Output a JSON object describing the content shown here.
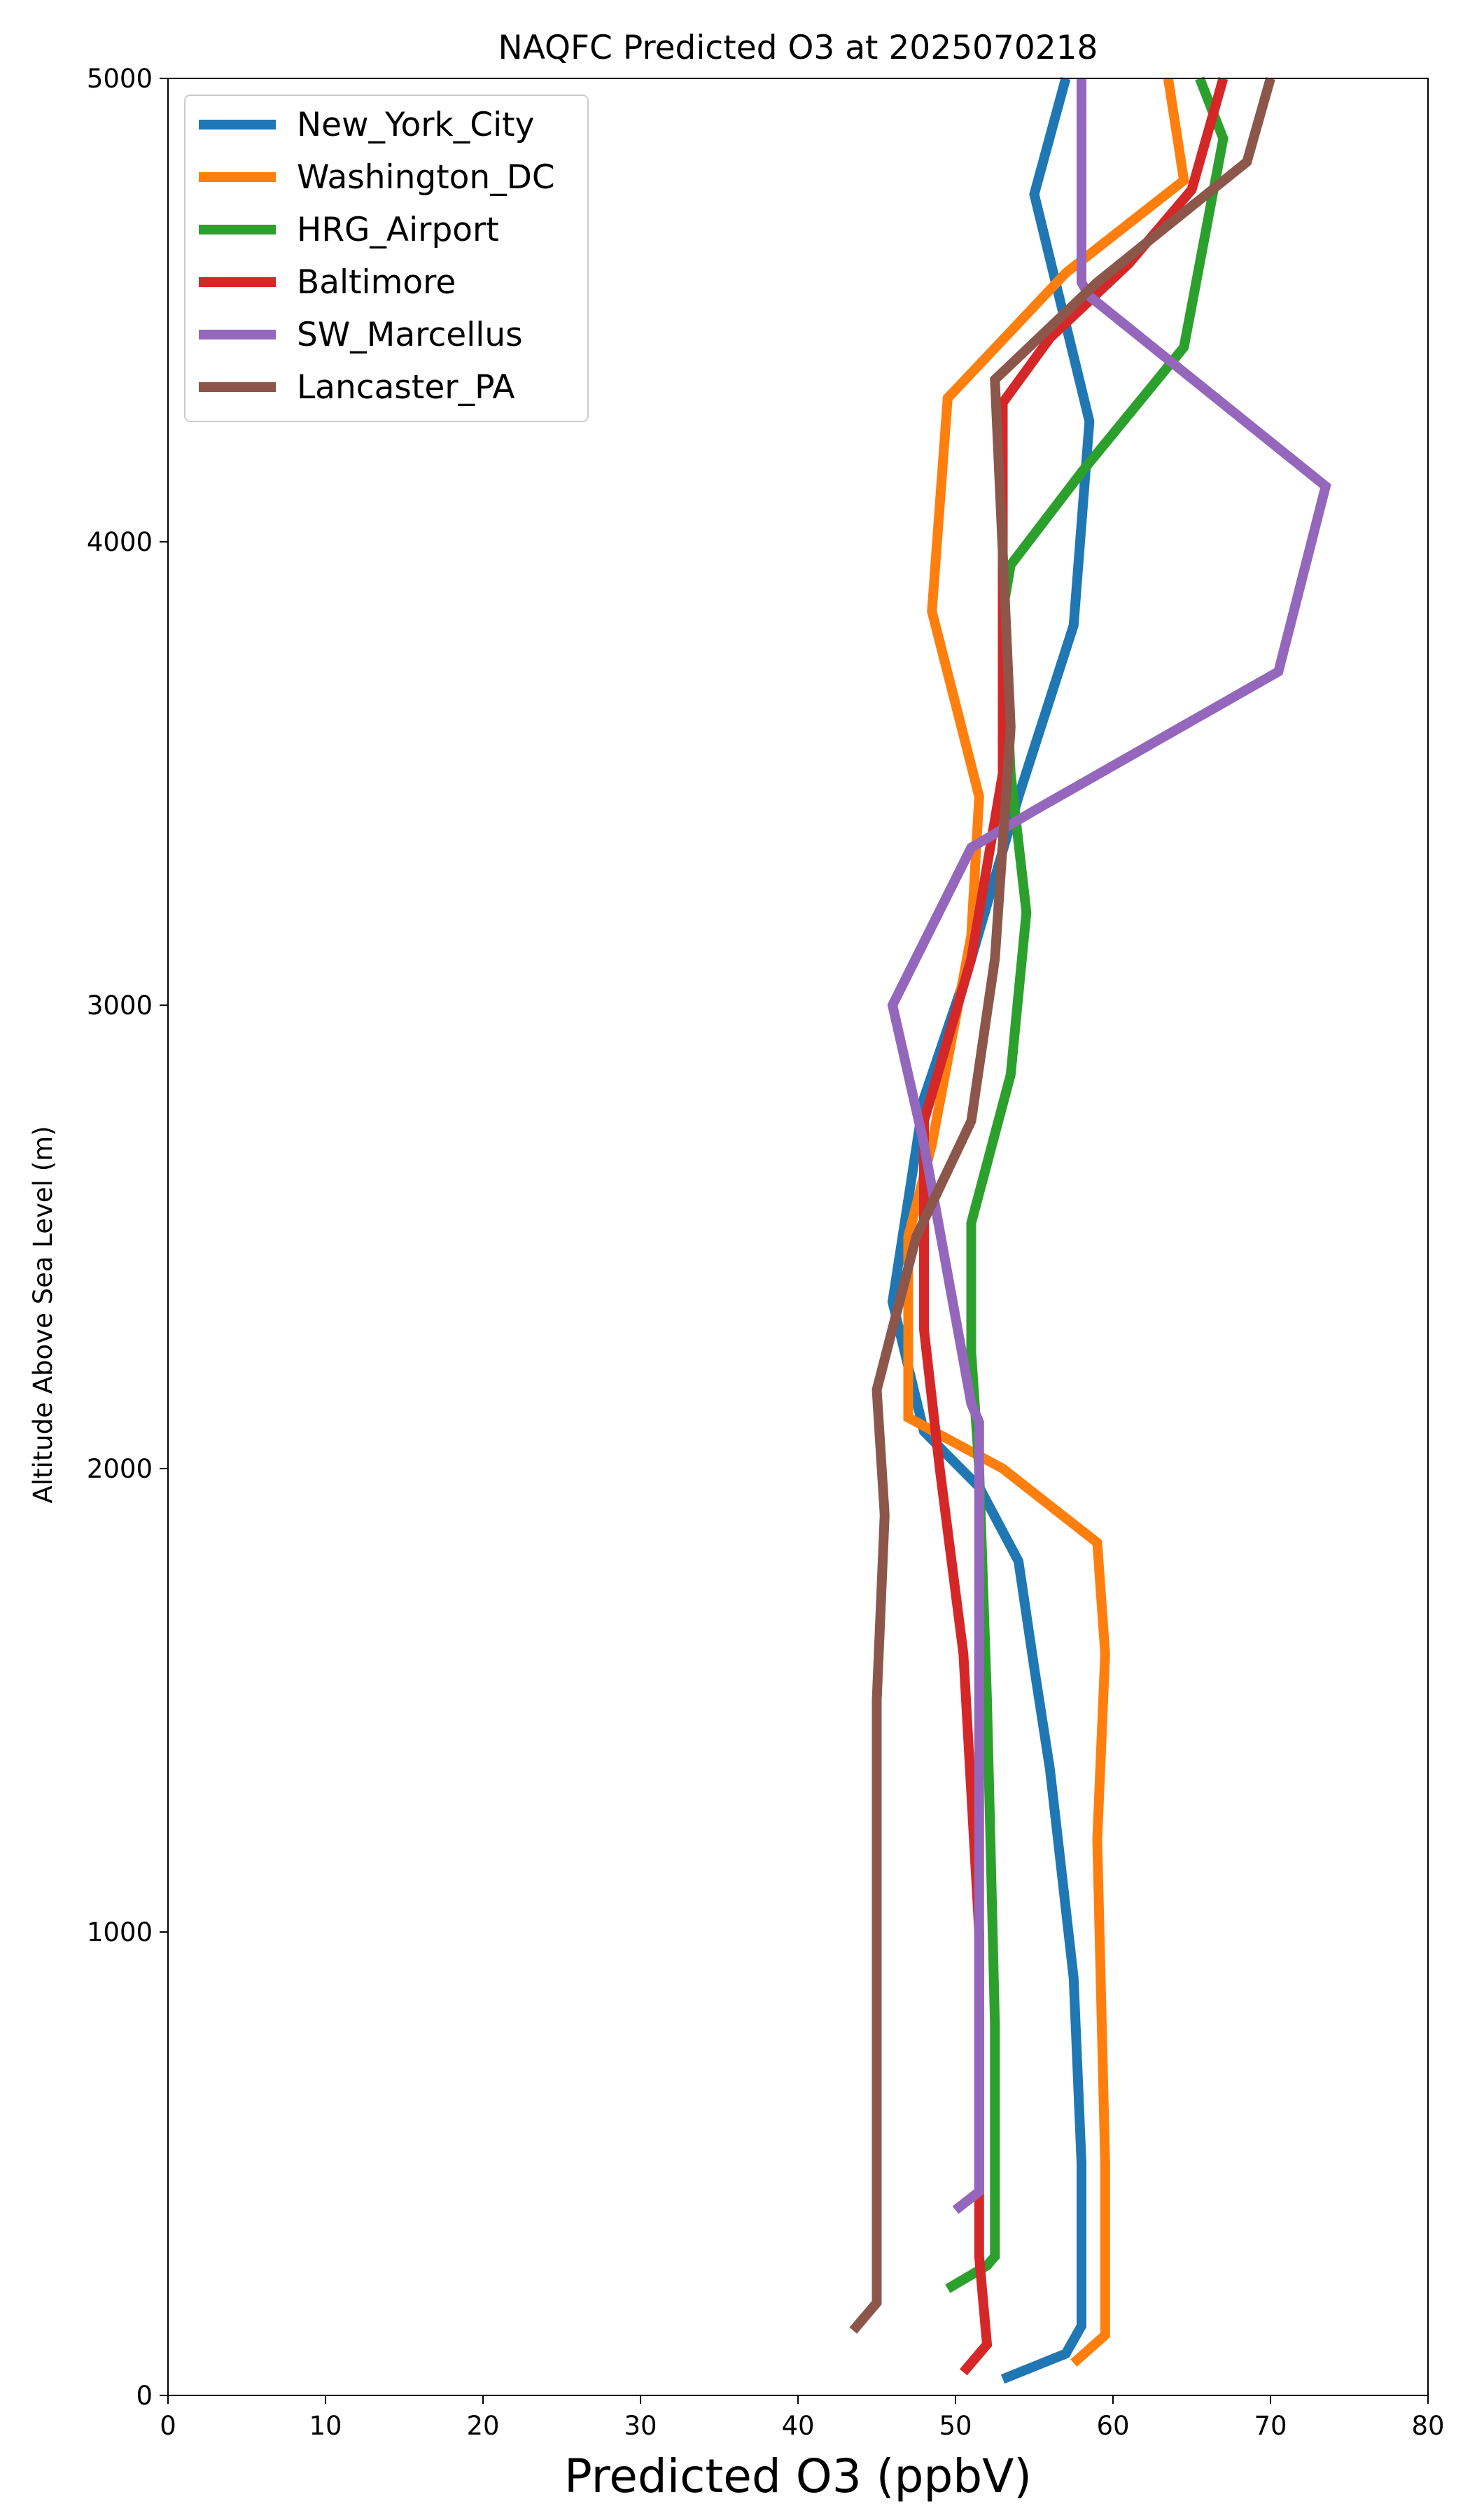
{
  "chart_data": {
    "type": "line",
    "title": "NAQFC Predicted O3 at 2025070218",
    "xlabel": "Predicted O3 (ppbV)",
    "ylabel": "Altitude Above Sea Level (m)",
    "xlim": [
      0,
      80
    ],
    "ylim": [
      0,
      5000
    ],
    "x_ticks": [
      "0",
      "10",
      "20",
      "30",
      "40",
      "50",
      "60",
      "70",
      "80"
    ],
    "y_ticks": [
      "0",
      "1000",
      "2000",
      "3000",
      "4000",
      "5000"
    ],
    "grid": false,
    "legend_position": "upper-left",
    "series": [
      {
        "name": "New_York_City",
        "color": "#1f77b4",
        "points": [
          [
            53,
            35
          ],
          [
            57,
            90
          ],
          [
            58,
            150
          ],
          [
            58,
            500
          ],
          [
            57.5,
            900
          ],
          [
            56.5,
            1200
          ],
          [
            56,
            1350
          ],
          [
            55,
            1570
          ],
          [
            54,
            1800
          ],
          [
            51.5,
            1960
          ],
          [
            48,
            2080
          ],
          [
            46,
            2360
          ],
          [
            48,
            2800
          ],
          [
            51,
            3100
          ],
          [
            54,
            3450
          ],
          [
            57.5,
            3820
          ],
          [
            58.5,
            4260
          ],
          [
            55,
            4750
          ],
          [
            57,
            5000
          ]
        ]
      },
      {
        "name": "Washington_DC",
        "color": "#ff7f0e",
        "points": [
          [
            57.5,
            70
          ],
          [
            59.5,
            130
          ],
          [
            59.5,
            500
          ],
          [
            59,
            1200
          ],
          [
            59.5,
            1600
          ],
          [
            59,
            1840
          ],
          [
            53,
            2000
          ],
          [
            47,
            2110
          ],
          [
            47,
            2500
          ],
          [
            48.5,
            2700
          ],
          [
            51,
            3150
          ],
          [
            51.5,
            3450
          ],
          [
            48.5,
            3850
          ],
          [
            49.5,
            4310
          ],
          [
            57,
            4580
          ],
          [
            64.5,
            4780
          ],
          [
            63.5,
            5000
          ]
        ]
      },
      {
        "name": "HRG_Airport",
        "color": "#2ca02c",
        "points": [
          [
            49.5,
            230
          ],
          [
            52,
            280
          ],
          [
            52.5,
            300
          ],
          [
            52.5,
            800
          ],
          [
            52,
            1500
          ],
          [
            51.5,
            2000
          ],
          [
            51,
            2250
          ],
          [
            51,
            2530
          ],
          [
            53.5,
            2850
          ],
          [
            54.5,
            3200
          ],
          [
            53.5,
            3500
          ],
          [
            53,
            3850
          ],
          [
            53.5,
            3950
          ],
          [
            58,
            4150
          ],
          [
            64.5,
            4420
          ],
          [
            67,
            4870
          ],
          [
            65.5,
            5000
          ]
        ]
      },
      {
        "name": "Baltimore",
        "color": "#d62728",
        "points": [
          [
            50.5,
            50
          ],
          [
            52,
            110
          ],
          [
            51.5,
            300
          ],
          [
            51.5,
            1000
          ],
          [
            50.5,
            1600
          ],
          [
            49,
            2000
          ],
          [
            48,
            2300
          ],
          [
            48,
            2750
          ],
          [
            51,
            3100
          ],
          [
            53,
            3500
          ],
          [
            53,
            4300
          ],
          [
            56,
            4440
          ],
          [
            61,
            4600
          ],
          [
            65,
            4760
          ],
          [
            67,
            5000
          ]
        ]
      },
      {
        "name": "SW_Marcellus",
        "color": "#9467bd",
        "points": [
          [
            50,
            400
          ],
          [
            51.5,
            440
          ],
          [
            51.5,
            800
          ],
          [
            51.5,
            1500
          ],
          [
            51.5,
            2100
          ],
          [
            51,
            2140
          ],
          [
            48,
            2700
          ],
          [
            46,
            3000
          ],
          [
            51,
            3340
          ],
          [
            55,
            3420
          ],
          [
            70.5,
            3720
          ],
          [
            73.5,
            4120
          ],
          [
            58.5,
            4530
          ],
          [
            58,
            4560
          ],
          [
            58,
            4800
          ],
          [
            58,
            5000
          ]
        ]
      },
      {
        "name": "Lancaster_PA",
        "color": "#8c564b",
        "points": [
          [
            43.5,
            140
          ],
          [
            45,
            200
          ],
          [
            45,
            500
          ],
          [
            45,
            1000
          ],
          [
            45,
            1500
          ],
          [
            45.5,
            1900
          ],
          [
            45,
            2170
          ],
          [
            47.5,
            2500
          ],
          [
            51,
            2750
          ],
          [
            52.5,
            3100
          ],
          [
            53.5,
            3600
          ],
          [
            52.5,
            4350
          ],
          [
            59,
            4560
          ],
          [
            68.5,
            4820
          ],
          [
            70,
            5000
          ]
        ]
      }
    ]
  }
}
